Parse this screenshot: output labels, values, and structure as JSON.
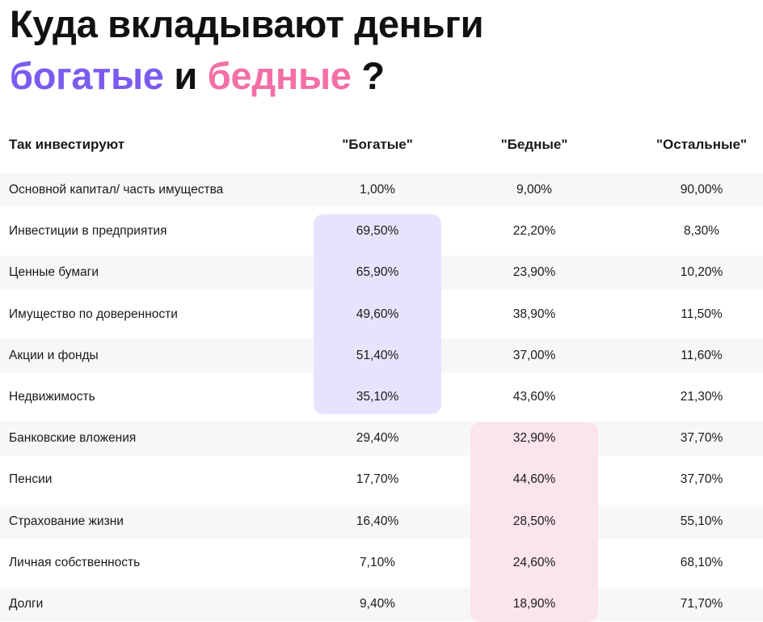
{
  "title": {
    "line1": "Куда вкладывают деньги",
    "rich_word": "богатые",
    "conj": "и",
    "poor_word": "бедные",
    "qmark": "?"
  },
  "colors": {
    "rich": "#7b5cf0",
    "poor": "#f36fa6",
    "rich_highlight": "#e7e3fd",
    "poor_highlight": "#fce4ef",
    "row_alt": "#f7f7f9"
  },
  "chart_data": {
    "type": "table",
    "columns": [
      "Так инвестируют",
      "\"Богатые\"",
      "\"Бедные\"",
      "\"Остальные\""
    ],
    "rows": [
      [
        "Основной капитал/ часть имущества",
        "1,00%",
        "9,00%",
        "90,00%"
      ],
      [
        "Инвестиции в предприятия",
        "69,50%",
        "22,20%",
        "8,30%"
      ],
      [
        "Ценные бумаги",
        "65,90%",
        "23,90%",
        "10,20%"
      ],
      [
        "Имущество по доверенности",
        "49,60%",
        "38,90%",
        "11,50%"
      ],
      [
        "Акции и фонды",
        "51,40%",
        "37,00%",
        "11,60%"
      ],
      [
        "Недвижимость",
        "35,10%",
        "43,60%",
        "21,30%"
      ],
      [
        "Банковские вложения",
        "29,40%",
        "32,90%",
        "37,70%"
      ],
      [
        "Пенсии",
        "17,70%",
        "44,60%",
        "37,70%"
      ],
      [
        "Страхование жизни",
        "16,40%",
        "28,50%",
        "55,10%"
      ],
      [
        "Личная собственность",
        "7,10%",
        "24,60%",
        "68,10%"
      ],
      [
        "Долги",
        "9,40%",
        "18,90%",
        "71,70%"
      ]
    ]
  }
}
